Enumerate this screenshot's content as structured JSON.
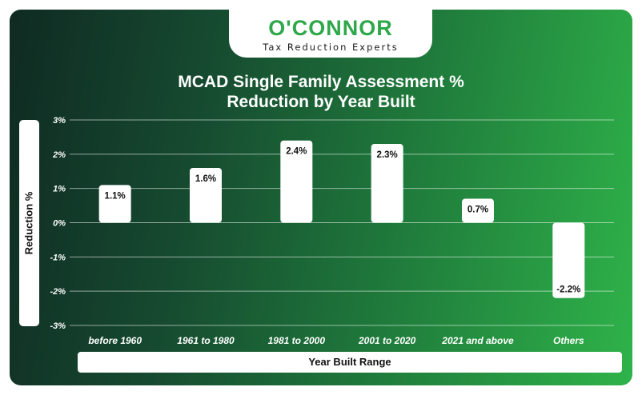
{
  "branding": {
    "logo_text": "O'CONNOR",
    "tagline": "Tax Reduction Experts"
  },
  "colors": {
    "background_dark": "#0f2a22",
    "background_light": "#2fb34a",
    "brand_green": "#2ea84a",
    "bar": "#ffffff",
    "grid": "#ffffff"
  },
  "chart_data": {
    "type": "bar",
    "title_line1": "MCAD Single Family Assessment %",
    "title_line2": "Reduction by Year Built",
    "xlabel": "Year Built Range",
    "ylabel": "Reduction %",
    "categories": [
      "before 1960",
      "1961 to 1980",
      "1981 to 2000",
      "2001 to 2020",
      "2021 and above",
      "Others"
    ],
    "values": [
      1.1,
      1.6,
      2.4,
      2.3,
      0.7,
      -2.2
    ],
    "value_labels": [
      "1.1%",
      "1.6%",
      "2.4%",
      "2.3%",
      "0.7%",
      "-2.2%"
    ],
    "yticks": [
      3,
      2,
      1,
      0,
      -1,
      -2,
      -3
    ],
    "ytick_labels": [
      "3%",
      "2%",
      "1%",
      "0%",
      "-1%",
      "-2%",
      "-3%"
    ],
    "ylim": [
      -3,
      3
    ],
    "grid": true,
    "legend": "none"
  }
}
